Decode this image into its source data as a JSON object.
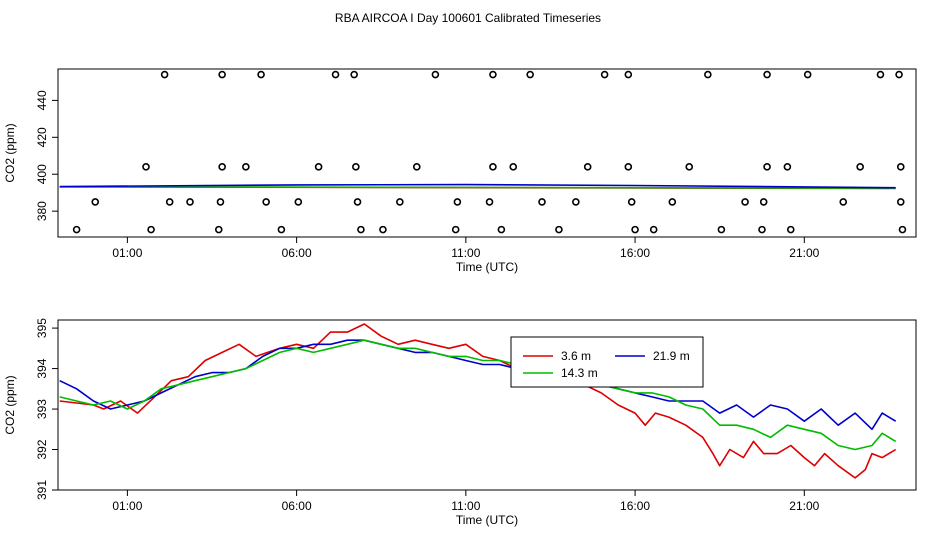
{
  "page": {
    "title": "RBA AIRCOA I  Day 100601  Calibrated Timeseries"
  },
  "chart_data": [
    {
      "type": "scatter",
      "title": "",
      "xlabel": "Time (UTC)",
      "ylabel": "CO2 (ppm)",
      "x_ticks": [
        {
          "value": 1,
          "label": "01:00"
        },
        {
          "value": 6,
          "label": "06:00"
        },
        {
          "value": 11,
          "label": "11:00"
        },
        {
          "value": 16,
          "label": "16:00"
        },
        {
          "value": 21,
          "label": "21:00"
        }
      ],
      "y_ticks": [
        380,
        400,
        420,
        440
      ],
      "xlim": [
        -1.05,
        24.3
      ],
      "ylim": [
        366,
        457
      ],
      "grid": false,
      "circle_series": {
        "rows": [
          {
            "y": 454,
            "x": [
              2.1,
              3.8,
              4.95,
              7.15,
              7.7,
              10.1,
              11.8,
              12.9,
              15.1,
              15.8,
              18.15,
              19.9,
              21.1,
              23.25,
              23.8
            ]
          },
          {
            "y": 404,
            "x": [
              1.55,
              3.8,
              4.5,
              6.65,
              7.75,
              9.55,
              11.8,
              12.4,
              14.6,
              15.8,
              17.6,
              19.9,
              20.5,
              22.65,
              23.85
            ]
          },
          {
            "y": 385,
            "x": [
              0.05,
              2.25,
              2.85,
              3.75,
              5.1,
              6.05,
              7.8,
              9.05,
              10.75,
              11.7,
              13.25,
              14.25,
              15.9,
              17.1,
              19.25,
              19.8,
              22.15,
              23.85
            ]
          },
          {
            "y": 370,
            "x": [
              -0.5,
              1.7,
              3.7,
              5.55,
              7.9,
              8.55,
              10.7,
              12.05,
              13.75,
              16.0,
              16.55,
              18.55,
              19.75,
              20.6,
              23.9
            ]
          }
        ]
      },
      "series": [
        {
          "color": "#dd0000",
          "x": [
            -1.0,
            23.7
          ],
          "y": [
            393.2,
            392.3
          ]
        },
        {
          "color": "#00bb00",
          "x": [
            -1.0,
            23.7
          ],
          "y": [
            393.2,
            392.5
          ]
        },
        {
          "color": "#0000cc",
          "x": [
            -1.0,
            6.0,
            11.0,
            16.0,
            23.7
          ],
          "y": [
            393.3,
            394.2,
            394.4,
            393.9,
            392.7
          ]
        }
      ]
    },
    {
      "type": "line",
      "title": "",
      "xlabel": "Time (UTC)",
      "ylabel": "CO2 (ppm)",
      "x_ticks": [
        {
          "value": 1,
          "label": "01:00"
        },
        {
          "value": 6,
          "label": "06:00"
        },
        {
          "value": 11,
          "label": "11:00"
        },
        {
          "value": 16,
          "label": "16:00"
        },
        {
          "value": 21,
          "label": "21:00"
        }
      ],
      "y_ticks": [
        391,
        392,
        393,
        394,
        395
      ],
      "xlim": [
        -1.05,
        24.3
      ],
      "ylim": [
        391,
        395.2
      ],
      "grid": false,
      "legend": {
        "position": "top-center",
        "entries": [
          {
            "label": "3.6 m",
            "color": "#dd0000"
          },
          {
            "label": "21.9 m",
            "color": "#0000cc"
          },
          {
            "label": "14.3 m",
            "color": "#00bb00"
          }
        ]
      },
      "series": [
        {
          "name": "3.6 m",
          "color": "#dd0000",
          "x": [
            -1.0,
            0.0,
            0.3,
            0.8,
            1.3,
            1.8,
            2.3,
            2.8,
            3.3,
            3.8,
            4.3,
            4.8,
            5.5,
            6.0,
            6.5,
            7.0,
            7.5,
            8.0,
            8.5,
            9.0,
            9.5,
            10.0,
            10.5,
            11.0,
            11.5,
            12.0,
            12.5,
            13.0,
            13.5,
            14.0,
            14.5,
            15.0,
            15.5,
            16.0,
            16.3,
            16.6,
            17.0,
            17.5,
            18.0,
            18.3,
            18.5,
            18.8,
            19.2,
            19.5,
            19.8,
            20.2,
            20.6,
            21.0,
            21.3,
            21.6,
            22.0,
            22.5,
            22.8,
            23.0,
            23.3,
            23.7
          ],
          "y": [
            393.2,
            393.1,
            393.0,
            393.2,
            392.9,
            393.3,
            393.7,
            393.8,
            394.2,
            394.4,
            394.6,
            394.3,
            394.5,
            394.6,
            394.5,
            394.9,
            394.9,
            395.1,
            394.8,
            394.6,
            394.7,
            394.6,
            394.5,
            394.6,
            394.3,
            394.2,
            394.0,
            393.9,
            393.8,
            394.0,
            393.6,
            393.4,
            393.1,
            392.9,
            392.6,
            392.9,
            392.8,
            392.6,
            392.3,
            391.9,
            391.6,
            392.0,
            391.8,
            392.2,
            391.9,
            391.9,
            392.1,
            391.8,
            391.6,
            391.9,
            391.6,
            391.3,
            391.5,
            391.9,
            391.8,
            392.0
          ]
        },
        {
          "name": "21.9 m",
          "color": "#0000cc",
          "x": [
            -1.0,
            -0.5,
            0.0,
            0.5,
            1.0,
            1.5,
            2.0,
            2.5,
            3.0,
            3.5,
            4.0,
            4.5,
            5.0,
            5.5,
            6.0,
            6.5,
            7.0,
            7.5,
            8.0,
            8.5,
            9.0,
            9.5,
            10.0,
            10.5,
            11.0,
            11.5,
            12.0,
            12.5,
            13.0,
            13.5,
            14.0,
            14.5,
            15.0,
            15.5,
            16.0,
            16.5,
            17.0,
            17.5,
            18.0,
            18.5,
            19.0,
            19.5,
            20.0,
            20.5,
            21.0,
            21.5,
            22.0,
            22.5,
            23.0,
            23.3,
            23.7
          ],
          "y": [
            393.7,
            393.5,
            393.2,
            393.0,
            393.1,
            393.2,
            393.4,
            393.6,
            393.8,
            393.9,
            393.9,
            394.0,
            394.3,
            394.5,
            394.5,
            394.6,
            394.6,
            394.7,
            394.7,
            394.6,
            394.5,
            394.4,
            394.4,
            394.3,
            394.2,
            394.1,
            394.1,
            394.0,
            394.0,
            393.9,
            393.8,
            393.7,
            393.6,
            393.5,
            393.4,
            393.3,
            393.2,
            393.2,
            393.2,
            392.9,
            393.1,
            392.8,
            393.1,
            393.0,
            392.7,
            393.0,
            392.6,
            392.9,
            392.5,
            392.9,
            392.7
          ]
        },
        {
          "name": "14.3 m",
          "color": "#00bb00",
          "x": [
            -1.0,
            -0.5,
            0.0,
            0.5,
            1.0,
            1.5,
            2.0,
            2.5,
            3.0,
            3.5,
            4.0,
            4.5,
            5.0,
            5.5,
            6.0,
            6.5,
            7.0,
            7.5,
            8.0,
            8.5,
            9.0,
            9.5,
            10.0,
            10.5,
            11.0,
            11.5,
            12.0,
            12.5,
            13.0,
            13.5,
            14.0,
            14.5,
            15.0,
            15.5,
            16.0,
            16.5,
            17.0,
            17.5,
            18.0,
            18.5,
            19.0,
            19.5,
            20.0,
            20.5,
            21.0,
            21.5,
            22.0,
            22.5,
            23.0,
            23.3,
            23.7
          ],
          "y": [
            393.3,
            393.2,
            393.1,
            393.2,
            393.0,
            393.2,
            393.5,
            393.6,
            393.7,
            393.8,
            393.9,
            394.0,
            394.2,
            394.4,
            394.5,
            394.4,
            394.5,
            394.6,
            394.7,
            394.6,
            394.5,
            394.5,
            394.4,
            394.3,
            394.3,
            394.2,
            394.2,
            394.1,
            393.9,
            394.0,
            394.1,
            393.8,
            393.6,
            393.5,
            393.4,
            393.4,
            393.3,
            393.1,
            393.0,
            392.6,
            392.6,
            392.5,
            392.3,
            392.6,
            392.5,
            392.4,
            392.1,
            392.0,
            392.1,
            392.4,
            392.2
          ]
        }
      ]
    }
  ]
}
